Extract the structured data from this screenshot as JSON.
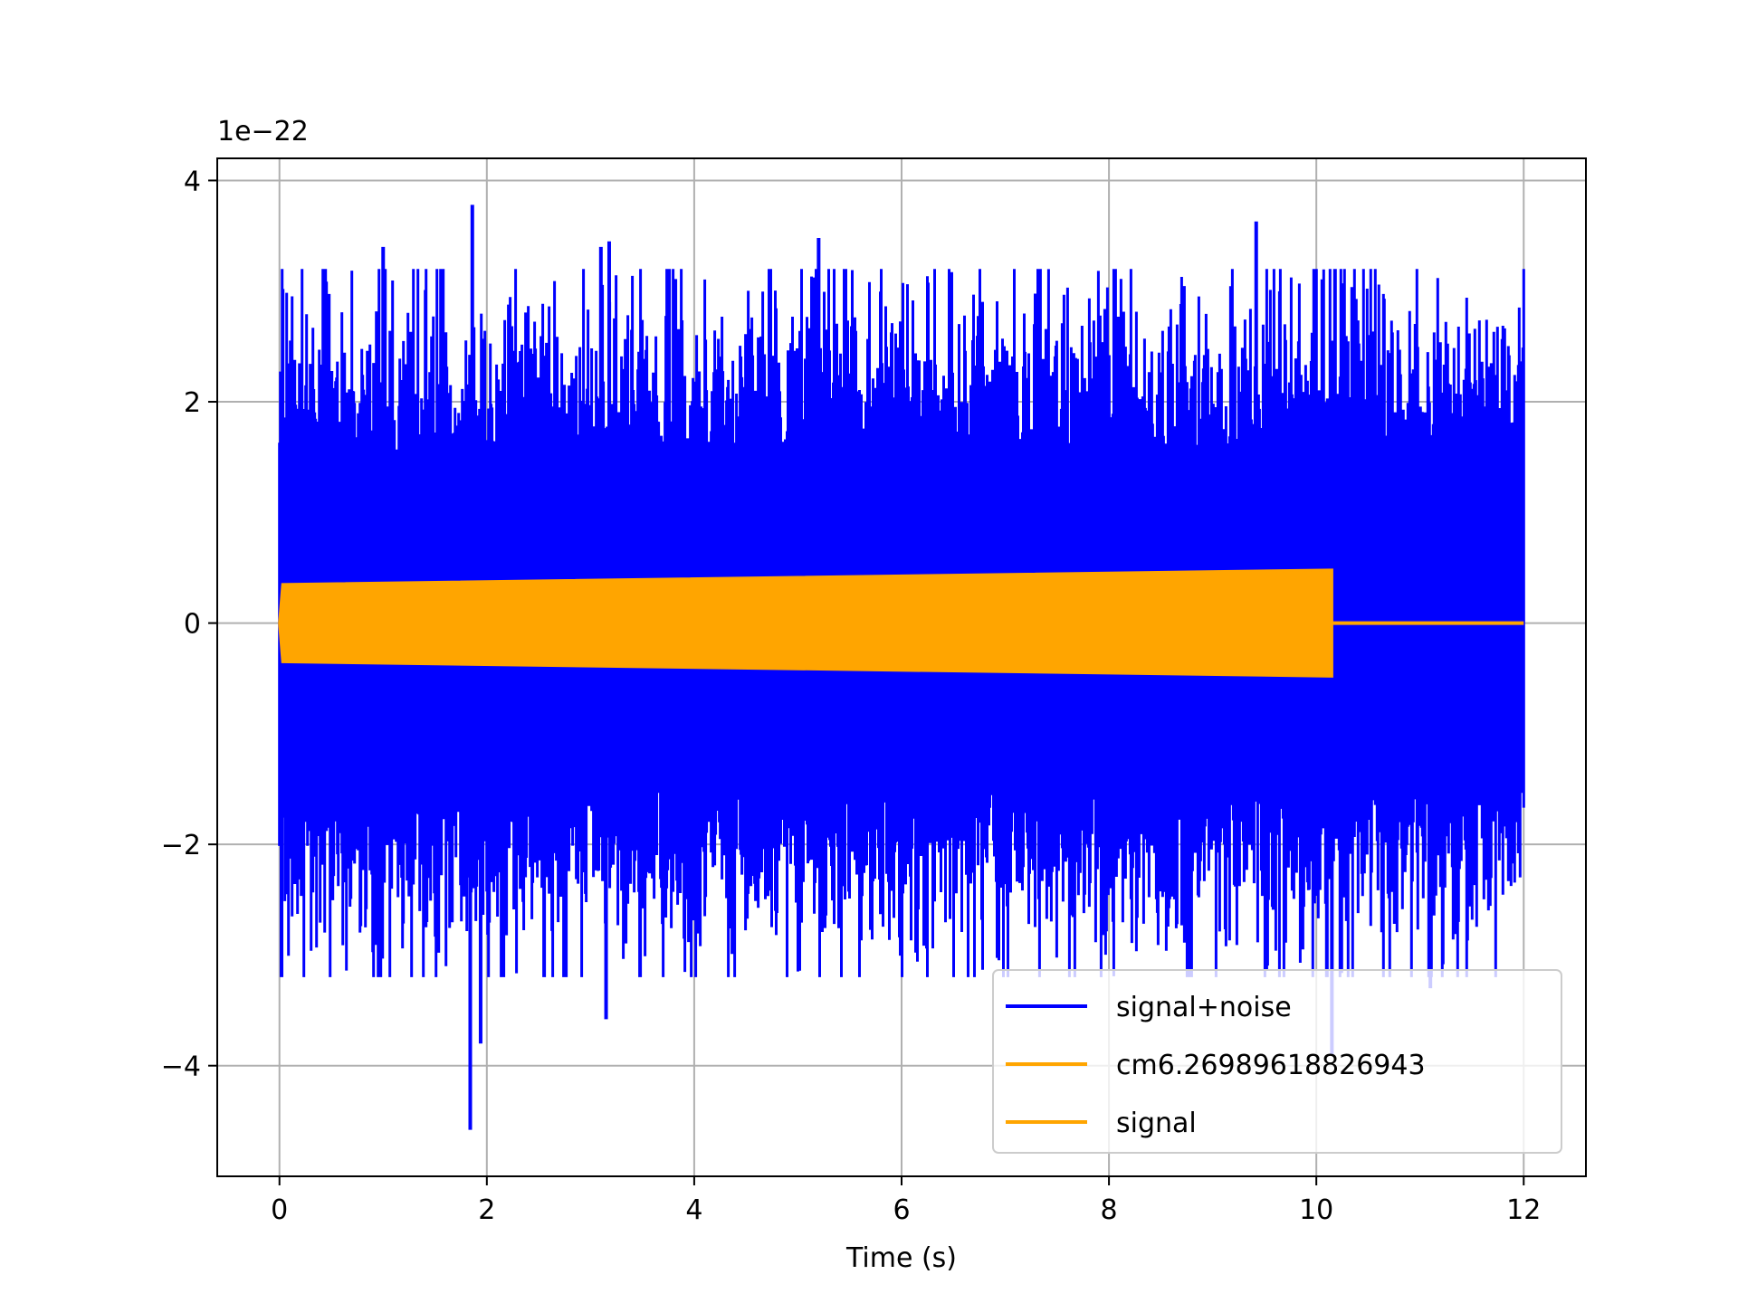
{
  "chart_data": {
    "type": "line",
    "title": "",
    "xlabel": "Time (s)",
    "ylabel": "",
    "y_offset_label": "1e−22",
    "xlim": [
      -0.6,
      12.6
    ],
    "ylim": [
      -5.0,
      4.2
    ],
    "x_ticks": [
      0,
      2,
      4,
      6,
      8,
      10,
      12
    ],
    "x_tick_labels": [
      "0",
      "2",
      "4",
      "6",
      "8",
      "10",
      "12"
    ],
    "y_ticks": [
      -4,
      -2,
      0,
      2,
      4
    ],
    "y_tick_labels": [
      "−4",
      "−2",
      "0",
      "2",
      "4"
    ],
    "grid": true,
    "legend_position": "bottom-right",
    "series": [
      {
        "name": "signal+noise",
        "color": "#0000ff",
        "x_range": [
          0,
          12
        ],
        "typical_amplitude": [
          -1.7,
          1.7
        ],
        "extremes": [
          {
            "x": 1.86,
            "y": 3.78
          },
          {
            "x": 1.84,
            "y": -4.58
          },
          {
            "x": 1.94,
            "y": -3.8
          },
          {
            "x": 9.42,
            "y": 3.63
          },
          {
            "x": 3.1,
            "y": 3.4
          },
          {
            "x": 3.18,
            "y": 3.45
          },
          {
            "x": 5.2,
            "y": 3.48
          },
          {
            "x": 1.0,
            "y": 3.4
          },
          {
            "x": 3.15,
            "y": -3.58
          },
          {
            "x": 0.02,
            "y": -3.2
          },
          {
            "x": 10.15,
            "y": -3.9
          },
          {
            "x": 11.1,
            "y": -3.3
          }
        ]
      },
      {
        "name": "cm6.26989618826943",
        "color": "#ffa500",
        "x_range": [
          0,
          10.15
        ],
        "envelope_start": 0.35,
        "envelope_end": 0.48
      },
      {
        "name": "signal",
        "color": "#ffa500",
        "x_range": [
          10.15,
          12
        ],
        "value": 0
      }
    ]
  }
}
